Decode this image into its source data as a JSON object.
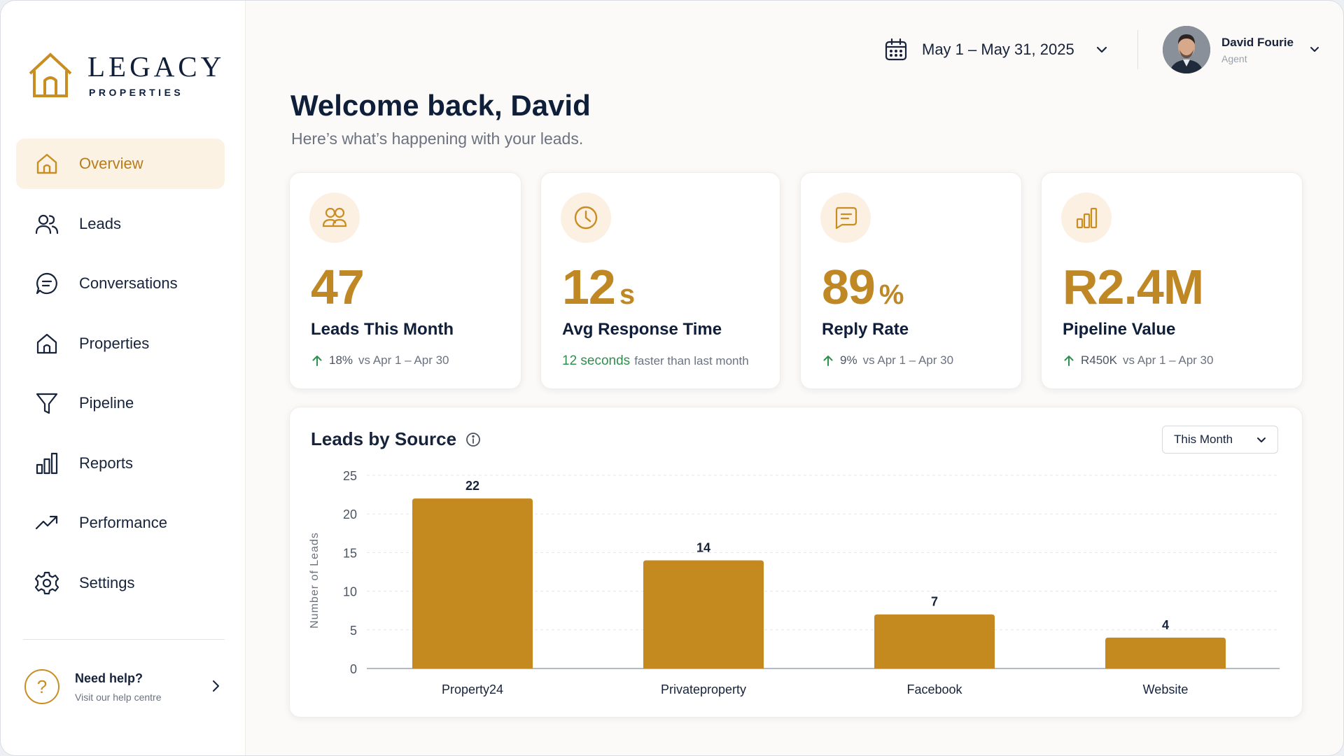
{
  "brand": {
    "name": "LEGACY",
    "tagline": "PROPERTIES",
    "accent": "#c98e22",
    "navy": "#0f1f3a"
  },
  "sidebar": {
    "items": [
      {
        "label": "Overview",
        "icon": "home-icon",
        "active": true
      },
      {
        "label": "Leads",
        "icon": "users-icon"
      },
      {
        "label": "Conversations",
        "icon": "chat-icon"
      },
      {
        "label": "Properties",
        "icon": "house-icon"
      },
      {
        "label": "Pipeline",
        "icon": "funnel-icon"
      },
      {
        "label": "Reports",
        "icon": "bar-chart-icon"
      },
      {
        "label": "Performance",
        "icon": "trend-up-icon"
      },
      {
        "label": "Settings",
        "icon": "gear-icon"
      }
    ],
    "help": {
      "title": "Need help?",
      "subtitle": "Visit our help centre"
    }
  },
  "header": {
    "date_range": "May 1 – May 31, 2025",
    "user": {
      "name": "David Fourie",
      "role": "Agent"
    }
  },
  "welcome": {
    "title": "Welcome back, David",
    "subtitle": "Here’s what’s happening with your leads."
  },
  "stats": [
    {
      "value": "47",
      "unit": "",
      "label": "Leads This Month",
      "delta_value": "18%",
      "delta_text": "vs Apr 1 – Apr 30",
      "icon": "users-icon"
    },
    {
      "value": "12",
      "unit": "s",
      "label": "Avg Response Time",
      "delta_value": "12 seconds",
      "delta_text": "faster than last month",
      "icon": "clock-icon"
    },
    {
      "value": "89",
      "unit": "%",
      "label": "Reply Rate",
      "delta_value": "9%",
      "delta_text": "vs Apr 1 – Apr 30",
      "icon": "message-icon"
    },
    {
      "value": "R2.4M",
      "unit": "",
      "label": "Pipeline Value",
      "delta_value": "R450K",
      "delta_text": "vs Apr 1 – Apr 30",
      "icon": "bar-chart-icon"
    }
  ],
  "chart_panel": {
    "title": "Leads by Source",
    "period": "This Month"
  },
  "chart_data": {
    "type": "bar",
    "title": "Leads by Source",
    "categories": [
      "Property24",
      "Privateproperty",
      "Facebook",
      "Website"
    ],
    "values": [
      22,
      14,
      7,
      4
    ],
    "ylabel": "Number of Leads",
    "xlabel": "",
    "ylim": [
      0,
      25
    ],
    "yticks": [
      0,
      5,
      10,
      15,
      20,
      25
    ],
    "grid": true,
    "bar_color": "#c48a20"
  }
}
